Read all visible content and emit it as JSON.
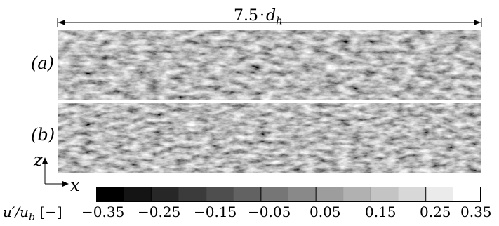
{
  "figure": {
    "dimension_label": {
      "value": "7.5",
      "dot": "·",
      "symbol": "d",
      "subscript": "h"
    },
    "panels": [
      {
        "label": "(a)"
      },
      {
        "label": "(b)"
      }
    ],
    "axes": {
      "vertical": "z",
      "horizontal": "x"
    },
    "colorbar": {
      "label_prefix": "u′/u",
      "label_sub": "b",
      "label_unit": "[−]",
      "ticks": [
        "−0.35",
        "−0.25",
        "−0.15",
        "−0.05",
        "0.05",
        "0.15",
        "0.25",
        "0.35"
      ],
      "range": [
        -0.35,
        0.35
      ],
      "levels": 14,
      "colormap": "grayscale (black to white)"
    }
  }
}
